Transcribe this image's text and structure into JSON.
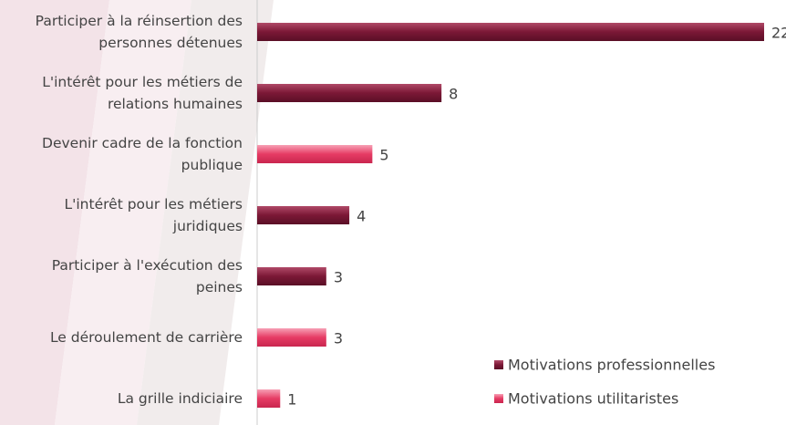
{
  "chart_data": {
    "type": "bar",
    "orientation": "horizontal",
    "categories": [
      "Participer à la réinsertion des personnes détenues",
      "L'intérêt pour les métiers de relations humaines",
      "Devenir cadre de la fonction publique",
      "L'intérêt pour les métiers juridiques",
      "Participer à l'exécution des peines",
      "Le déroulement de carrière",
      "La grille indiciaire"
    ],
    "series": [
      {
        "name": "Motivations professionnelles",
        "color": "#7b1836",
        "values": [
          22,
          8,
          null,
          4,
          3,
          null,
          null
        ]
      },
      {
        "name": "Motivations utilitaristes",
        "color": "#e63b64",
        "values": [
          null,
          null,
          5,
          null,
          null,
          3,
          1
        ]
      }
    ],
    "xlim": [
      0,
      22
    ],
    "legend": "bottom-right"
  }
}
